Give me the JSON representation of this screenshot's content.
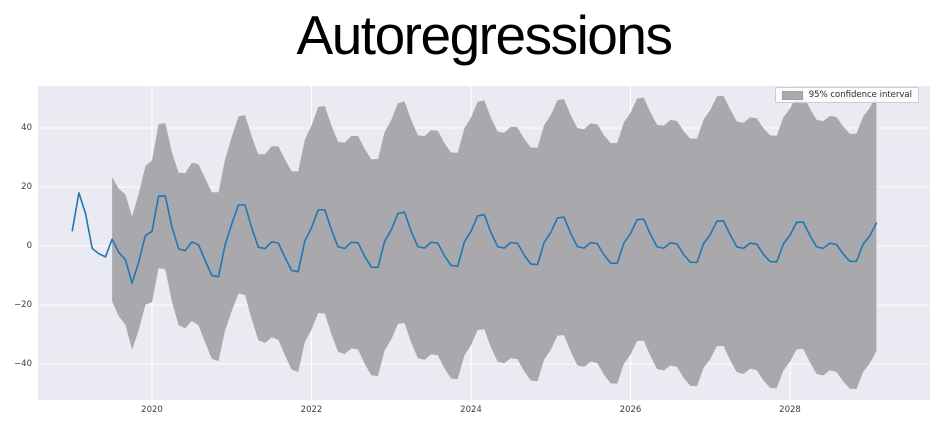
{
  "title": "Autoregressions",
  "legend": {
    "label": "95% confidence interval"
  },
  "colors": {
    "figure_background": "#ffffff",
    "axes_background": "#eaeaf2",
    "grid": "#ffffff",
    "line": "#1f77b4",
    "band": "#a9a9ad",
    "tick_label": "#3b3b3b",
    "title": "#000000"
  },
  "chart_data": {
    "type": "line",
    "title": "Autoregressions",
    "xlabel": "",
    "ylabel": "",
    "grid": true,
    "legend_position": "upper right",
    "legend_entries": [
      "95% confidence interval"
    ],
    "x_unit": "monthly dates",
    "start_month": "2019-01",
    "end_month": "2029-02",
    "forecast_start_month": "2019-07",
    "xlim_years": [
      2018.57,
      2029.76
    ],
    "ylim": [
      -52,
      54
    ],
    "x_ticks": {
      "years": [
        2020,
        2022,
        2024,
        2026,
        2028
      ],
      "labels": [
        "2020",
        "2022",
        "2024",
        "2026",
        "2028"
      ]
    },
    "y_ticks": {
      "values": [
        40,
        20,
        0,
        -20,
        -40
      ],
      "labels": [
        "40",
        "20",
        "0",
        "−20",
        "−40"
      ]
    },
    "series": [
      {
        "name": "predicted-and-forecast",
        "color": "#1f77b4",
        "values": [
          5.2,
          18.0,
          11.0,
          -0.8,
          -2.6,
          -3.7,
          2.3,
          -2.2,
          -4.6,
          -12.6,
          -5.4,
          3.6,
          5.0,
          16.9,
          16.9,
          6.5,
          -1.0,
          -1.6,
          1.4,
          0.4,
          -4.9,
          -10.0,
          -10.4,
          0.4,
          7.5,
          13.9,
          13.9,
          6.2,
          -0.4,
          -0.9,
          1.4,
          1.0,
          -3.8,
          -8.3,
          -8.7,
          1.8,
          6.2,
          12.2,
          12.3,
          5.5,
          -0.3,
          -0.8,
          1.3,
          1.1,
          -3.5,
          -7.2,
          -7.3,
          1.6,
          5.5,
          11.0,
          11.5,
          5.0,
          -0.2,
          -0.7,
          1.3,
          1.0,
          -3.3,
          -6.6,
          -6.8,
          1.4,
          5.0,
          10.2,
          10.6,
          4.6,
          -0.2,
          -0.7,
          1.2,
          0.9,
          -3.1,
          -6.1,
          -6.3,
          1.2,
          4.6,
          9.5,
          9.8,
          4.3,
          -0.2,
          -0.7,
          1.2,
          0.8,
          -3.0,
          -5.8,
          -5.9,
          1.0,
          4.2,
          8.9,
          9.1,
          4.0,
          -0.3,
          -0.7,
          1.1,
          0.7,
          -2.9,
          -5.5,
          -5.6,
          0.8,
          3.9,
          8.4,
          8.5,
          3.8,
          -0.3,
          -0.8,
          1.0,
          0.6,
          -2.8,
          -5.3,
          -5.4,
          0.7,
          3.7,
          8.0,
          8.1,
          3.6,
          -0.3,
          -0.8,
          1.0,
          0.5,
          -2.7,
          -5.2,
          -5.2,
          0.6,
          3.5,
          7.7
        ]
      },
      {
        "name": "95% confidence interval",
        "type": "band",
        "color": "#a9a9ad",
        "start_index": 6,
        "note": "band bounds = line value ± half_width",
        "half_widths": [
          21.0,
          21.6,
          22.1,
          22.6,
          23.1,
          23.5,
          24.0,
          24.4,
          24.8,
          25.3,
          25.8,
          26.3,
          26.8,
          27.3,
          27.8,
          28.2,
          28.6,
          29.0,
          29.5,
          30.0,
          30.5,
          31.0,
          31.5,
          32.0,
          32.4,
          32.8,
          33.2,
          33.6,
          34.0,
          34.3,
          34.6,
          34.9,
          35.2,
          35.4,
          35.6,
          35.8,
          36.0,
          36.2,
          36.4,
          36.6,
          36.8,
          37.0,
          37.2,
          37.4,
          37.6,
          37.7,
          37.8,
          37.9,
          38.0,
          38.1,
          38.2,
          38.3,
          38.4,
          38.5,
          38.6,
          38.7,
          38.8,
          38.9,
          39.0,
          39.1,
          39.2,
          39.3,
          39.4,
          39.5,
          39.6,
          39.7,
          39.8,
          39.9,
          40.0,
          40.1,
          40.2,
          40.3,
          40.4,
          40.5,
          40.6,
          40.7,
          40.8,
          40.9,
          41.0,
          41.1,
          41.2,
          41.3,
          41.4,
          41.5,
          41.6,
          41.7,
          41.8,
          41.9,
          42.0,
          42.1,
          42.2,
          42.3,
          42.4,
          42.5,
          42.5,
          42.6,
          42.6,
          42.7,
          42.7,
          42.8,
          42.8,
          42.9,
          42.9,
          43.0,
          43.0,
          43.0,
          43.1,
          43.1,
          43.1,
          43.2,
          43.2,
          43.2,
          43.3,
          43.3,
          43.3,
          43.4
        ]
      }
    ]
  }
}
